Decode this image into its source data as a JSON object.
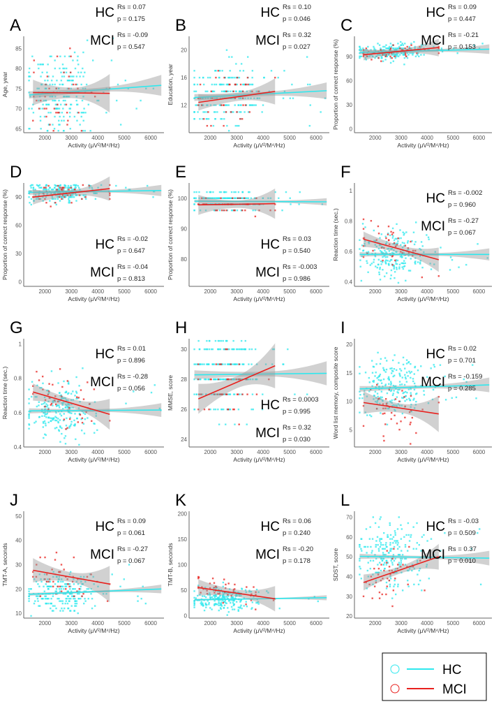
{
  "chart_data": [
    {
      "type": "scatter",
      "panel": "A",
      "ylabel": "Age, year",
      "xlabel": "Activity (μV²/M⁴/Hz)",
      "xlim": [
        1200,
        6500
      ],
      "xticks": [
        2000,
        3000,
        4000,
        5000,
        6000
      ],
      "ylim": [
        64,
        88
      ],
      "yticks": [
        65,
        70,
        75,
        80,
        85
      ],
      "spread": 5,
      "round": 1,
      "hc": {
        "line": [
          73.4,
          75.8
        ],
        "ci": [
          0.9,
          0.5,
          2.6
        ]
      },
      "mci": {
        "line": [
          74.0,
          73.8
        ],
        "ci": [
          3.2,
          1.3,
          4.8
        ]
      },
      "stats": {
        "hc_label": "HC",
        "hc_rs": "Rs = 0.07",
        "hc_p": "p = 0.175",
        "mci_label": "MCI",
        "mci_rs": "Rs = -0.09",
        "mci_p": "p = 0.547"
      },
      "stats_pos": "above"
    },
    {
      "type": "scatter",
      "panel": "B",
      "ylabel": "Education, year",
      "xlabel": "Activity (μV²/M⁴/Hz)",
      "xlim": [
        1200,
        6500
      ],
      "xticks": [
        2000,
        3000,
        4000,
        5000,
        6000
      ],
      "ylim": [
        8,
        22
      ],
      "yticks": [
        12,
        16,
        20
      ],
      "spread": 2.2,
      "round": 1,
      "hc": {
        "line": [
          13.1,
          14.1
        ],
        "ci": [
          0.5,
          0.3,
          1.2
        ]
      },
      "mci": {
        "line": [
          12.4,
          14.0
        ],
        "ci": [
          1.2,
          0.6,
          1.9
        ]
      },
      "stats": {
        "hc_label": "HC",
        "hc_rs": "Rs = 0.10",
        "hc_p": "p = 0.046",
        "mci_label": "MCI",
        "mci_rs": "Rs = 0.32",
        "mci_p": "p = 0.027"
      },
      "stats_pos": "above"
    },
    {
      "type": "scatter",
      "panel": "C",
      "ylabel": "Proportion of correct response (%)",
      "xlabel": "Activity (μV²/M⁴/Hz)",
      "xlim": [
        1200,
        6500
      ],
      "xticks": [
        2000,
        3000,
        4000,
        5000,
        6000
      ],
      "ylim": [
        -5,
        115
      ],
      "yticks": [
        0,
        30,
        60,
        90
      ],
      "spread": 5,
      "round": 2,
      "hc": {
        "line": [
          95,
          99
        ],
        "ci": [
          2.5,
          1.5,
          6
        ]
      },
      "mci": {
        "line": [
          92,
          101
        ],
        "ci": [
          7,
          3,
          11
        ]
      },
      "stats": {
        "hc_label": "HC",
        "hc_rs": "Rs = 0.09",
        "hc_p": "p = 0.447",
        "mci_label": "MCI",
        "mci_rs": "Rs = -0.21",
        "mci_p": "p = 0.153"
      },
      "stats_pos": "above"
    },
    {
      "type": "scatter",
      "panel": "D",
      "ylabel": "Proportion of correct response (%)",
      "xlabel": "Activity (μV²/M⁴/Hz)",
      "xlim": [
        1200,
        6500
      ],
      "xticks": [
        2000,
        3000,
        4000,
        5000,
        6000
      ],
      "ylim": [
        -5,
        105
      ],
      "yticks": [
        0,
        30,
        60,
        90
      ],
      "spread": 5,
      "round": 2,
      "hc": {
        "line": [
          95,
          97
        ],
        "ci": [
          2.5,
          1.2,
          6
        ]
      },
      "mci": {
        "line": [
          90,
          99
        ],
        "ci": [
          8,
          3,
          13
        ]
      },
      "stats": {
        "hc_label": "HC",
        "hc_rs": "Rs = -0.02",
        "hc_p": "p = 0.647",
        "mci_label": "MCI",
        "mci_rs": "Rs = -0.04",
        "mci_p": "p = 0.813"
      },
      "stats_pos": "bottom"
    },
    {
      "type": "scatter",
      "panel": "E",
      "ylabel": "Proportion of correct response (%)",
      "xlabel": "Activity (μV²/M⁴/Hz)",
      "xlim": [
        1200,
        6500
      ],
      "xticks": [
        2000,
        3000,
        4000,
        5000,
        6000
      ],
      "ylim": [
        71,
        105
      ],
      "yticks": [
        80,
        90,
        100
      ],
      "spread": 1.5,
      "round": 2,
      "hc": {
        "line": [
          99,
          98.8
        ],
        "ci": [
          0.5,
          0.3,
          1.2
        ]
      },
      "mci": {
        "line": [
          97.8,
          98.2
        ],
        "ci": [
          3.3,
          1.2,
          5
        ]
      },
      "stats": {
        "hc_label": "HC",
        "hc_rs": "Rs = 0.03",
        "hc_p": "p = 0.540",
        "mci_label": "MCI",
        "mci_rs": "Rs = -0.003",
        "mci_p": "p = 0.986"
      },
      "stats_pos": "bottom"
    },
    {
      "type": "scatter",
      "panel": "F",
      "ylabel": "Reaction time (sec.)",
      "xlabel": "Activity (μV²/M⁴/Hz)",
      "xlim": [
        1200,
        6500
      ],
      "xticks": [
        2000,
        3000,
        4000,
        5000,
        6000
      ],
      "ylim": [
        0.37,
        1.05
      ],
      "yticks": [
        0.4,
        0.6,
        0.8,
        1.0
      ],
      "spread": 0.08,
      "round": 0,
      "hc": {
        "line": [
          0.58,
          0.58
        ],
        "ci": [
          0.015,
          0.008,
          0.04
        ]
      },
      "mci": {
        "line": [
          0.68,
          0.545
        ],
        "ci": [
          0.05,
          0.025,
          0.08
        ]
      },
      "stats": {
        "hc_label": "HC",
        "hc_rs": "Rs = -0.002",
        "hc_p": "p = 0.960",
        "mci_label": "MCI",
        "mci_rs": "Rs = -0.27",
        "mci_p": "p = 0.067"
      },
      "stats_pos": "top"
    },
    {
      "type": "scatter",
      "panel": "G",
      "ylabel": "Reaction time (sec.)",
      "xlabel": "Activity (μV²/M⁴/Hz)",
      "xlim": [
        1200,
        6500
      ],
      "xticks": [
        2000,
        3000,
        4000,
        5000,
        6000
      ],
      "ylim": [
        0.4,
        1.03
      ],
      "yticks": [
        0.4,
        0.6,
        0.8,
        1.0
      ],
      "spread": 0.08,
      "round": 0,
      "hc": {
        "line": [
          0.61,
          0.615
        ],
        "ci": [
          0.015,
          0.008,
          0.04
        ]
      },
      "mci": {
        "line": [
          0.72,
          0.59
        ],
        "ci": [
          0.05,
          0.025,
          0.09
        ]
      },
      "stats": {
        "hc_label": "HC",
        "hc_rs": "Rs = 0.01",
        "hc_p": "p = 0.896",
        "mci_label": "MCI",
        "mci_rs": "Rs = -0.28",
        "mci_p": "p = 0.056"
      },
      "stats_pos": "top"
    },
    {
      "type": "scatter",
      "panel": "H",
      "ylabel": "MMSE, score",
      "xlabel": "Activity (μV²/M⁴/Hz)",
      "xlim": [
        1200,
        6500
      ],
      "xticks": [
        2000,
        3000,
        4000,
        5000,
        6000
      ],
      "ylim": [
        23.5,
        30.7
      ],
      "yticks": [
        24,
        26,
        28,
        30
      ],
      "spread": 1.4,
      "round": 1,
      "hc": {
        "line": [
          28.3,
          28.4
        ],
        "ci": [
          0.3,
          0.15,
          0.8
        ]
      },
      "mci": {
        "line": [
          26.7,
          28.9
        ],
        "ci": [
          1.0,
          0.4,
          1.5
        ]
      },
      "stats": {
        "hc_label": "HC",
        "hc_rs": "Rs = 0.0003",
        "hc_p": "p = 0.995",
        "mci_label": "MCI",
        "mci_rs": "Rs = 0.32",
        "mci_p": "p = 0.030"
      },
      "stats_pos": "bottom"
    },
    {
      "type": "scatter",
      "panel": "I",
      "ylabel": "Word list memory, composite score",
      "xlabel": "Activity (μV²/M⁴/Hz)",
      "xlim": [
        1200,
        6500
      ],
      "xticks": [
        2000,
        3000,
        4000,
        5000,
        6000
      ],
      "ylim": [
        2,
        21
      ],
      "yticks": [
        5,
        10,
        15,
        20
      ],
      "spread": 2.6,
      "round": 0,
      "hc": {
        "line": [
          12.2,
          12.9
        ],
        "ci": [
          0.5,
          0.3,
          1.3
        ]
      },
      "mci": {
        "line": [
          9.8,
          7.8
        ],
        "ci": [
          2.0,
          0.8,
          3.2
        ]
      },
      "stats": {
        "hc_label": "HC",
        "hc_rs": "Rs = 0.02",
        "hc_p": "p = 0.701",
        "mci_label": "MCI",
        "mci_rs": "Rs = -0.159",
        "mci_p": "p = 0.285"
      },
      "stats_pos": "top"
    },
    {
      "type": "scatter",
      "panel": "J",
      "ylabel": "TMT-A, seconds",
      "xlabel": "Activity (μV²/M⁴/Hz)",
      "xlim": [
        1200,
        6500
      ],
      "xticks": [
        2000,
        3000,
        4000,
        5000,
        6000
      ],
      "ylim": [
        8,
        52
      ],
      "yticks": [
        10,
        20,
        30,
        40,
        50
      ],
      "spread": 4,
      "round": 1,
      "hc": {
        "line": [
          17.8,
          20
        ],
        "ci": [
          0.6,
          0.4,
          1.8
        ]
      },
      "mci": {
        "line": [
          27.7,
          22
        ],
        "ci": [
          5,
          2,
          7.5
        ]
      },
      "stats": {
        "hc_label": "HC",
        "hc_rs": "Rs = 0.09",
        "hc_p": "p = 0.061",
        "mci_label": "MCI",
        "mci_rs": "Rs = -0.27",
        "mci_p": "p = 0.067"
      },
      "stats_pos": "top"
    },
    {
      "type": "scatter",
      "panel": "K",
      "ylabel": "TMT-B, seconds",
      "xlabel": "Activity (μV²/M⁴/Hz)",
      "xlim": [
        1200,
        6500
      ],
      "xticks": [
        2000,
        3000,
        4000,
        5000,
        6000
      ],
      "ylim": [
        -5,
        205
      ],
      "yticks": [
        0,
        50,
        100,
        150,
        200
      ],
      "spread": 12,
      "round": 1,
      "hc": {
        "line": [
          31,
          35
        ],
        "ci": [
          2,
          1,
          5
        ]
      },
      "mci": {
        "line": [
          55,
          33
        ],
        "ci": [
          16,
          7,
          25
        ]
      },
      "stats": {
        "hc_label": "HC",
        "hc_rs": "Rs = 0.06",
        "hc_p": "p = 0.240",
        "mci_label": "MCI",
        "mci_rs": "Rs = -0.20",
        "mci_p": "p = 0.178"
      },
      "stats_pos": "top"
    },
    {
      "type": "scatter",
      "panel": "L",
      "ylabel": "SDST, score",
      "xlabel": "Activity (μV²/M⁴/Hz)",
      "xlim": [
        1200,
        6500
      ],
      "xticks": [
        2000,
        3000,
        4000,
        5000,
        6000
      ],
      "ylim": [
        19,
        73
      ],
      "yticks": [
        20,
        30,
        40,
        50,
        60,
        70
      ],
      "spread": 8,
      "round": 1,
      "hc": {
        "line": [
          50.2,
          49.3
        ],
        "ci": [
          1.3,
          0.7,
          3.7
        ]
      },
      "mci": {
        "line": [
          37,
          50
        ],
        "ci": [
          4,
          1.8,
          6.5
        ]
      },
      "stats": {
        "hc_label": "HC",
        "hc_rs": "Rs = -0.03",
        "hc_p": "p = 0.509",
        "mci_label": "MCI",
        "mci_rs": "Rs = 0.37",
        "mci_p": "p = 0.010"
      },
      "stats_pos": "top"
    }
  ],
  "legend": {
    "items": [
      {
        "label": "HC",
        "color": "#2ee8ee"
      },
      {
        "label": "MCI",
        "color": "#e8211e"
      }
    ]
  },
  "colors": {
    "hc": "#2ee8ee",
    "mci": "#e8211e",
    "ci": "#9a9a9a"
  }
}
